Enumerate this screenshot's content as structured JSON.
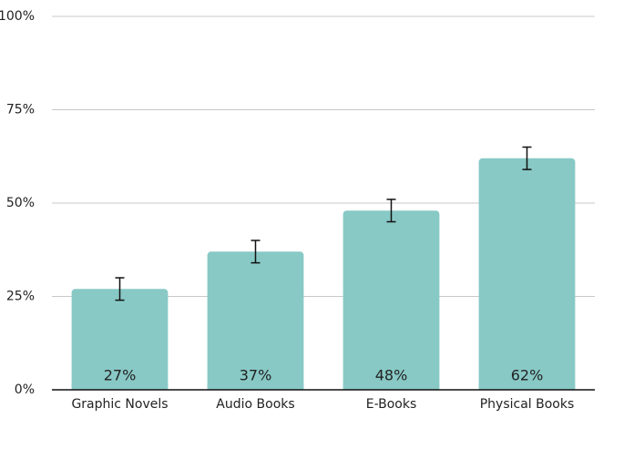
{
  "chart_data": {
    "type": "bar",
    "categories": [
      "Graphic Novels",
      "Audio Books",
      "E-Books",
      "Physical Books"
    ],
    "values": [
      27,
      37,
      48,
      62
    ],
    "value_labels": [
      "27%",
      "37%",
      "48%",
      "62%"
    ],
    "errors": [
      3,
      3,
      3,
      3
    ],
    "color": "#88c9c6",
    "ylim": [
      0,
      100
    ],
    "yticks": [
      {
        "value": 0,
        "label": "0%"
      },
      {
        "value": 25,
        "label": "25%"
      },
      {
        "value": 50,
        "label": "50%"
      },
      {
        "value": 75,
        "label": "75%"
      },
      {
        "value": 100,
        "label": "100%"
      }
    ],
    "grid": true
  }
}
